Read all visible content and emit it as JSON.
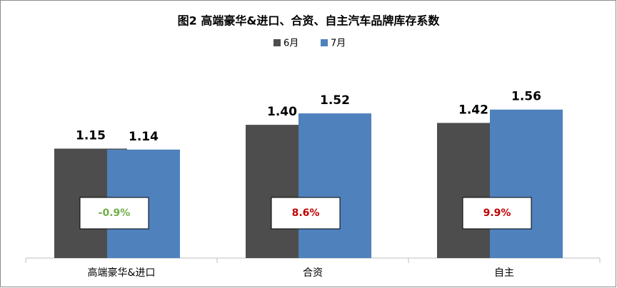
{
  "chart_data": {
    "type": "bar",
    "title": "图2 高端豪华&进口、合资、自主汽车品牌库存系数",
    "categories": [
      "高端豪华&进口",
      "合资",
      "自主"
    ],
    "series": [
      {
        "name": "6月",
        "color": "#4d4d4d",
        "values": [
          1.15,
          1.4,
          1.42
        ],
        "value_labels": [
          "1.15",
          "1.40",
          "1.42"
        ]
      },
      {
        "name": "7月",
        "color": "#4f81bd",
        "values": [
          1.14,
          1.52,
          1.56
        ],
        "value_labels": [
          "1.14",
          "1.52",
          "1.56"
        ]
      }
    ],
    "annotations": [
      {
        "text": "-0.9%",
        "color": "#70ad47"
      },
      {
        "text": "8.6%",
        "color": "#c00000"
      },
      {
        "text": "9.9%",
        "color": "#c00000"
      }
    ],
    "ylim": [
      0,
      2
    ],
    "legend": "top"
  }
}
